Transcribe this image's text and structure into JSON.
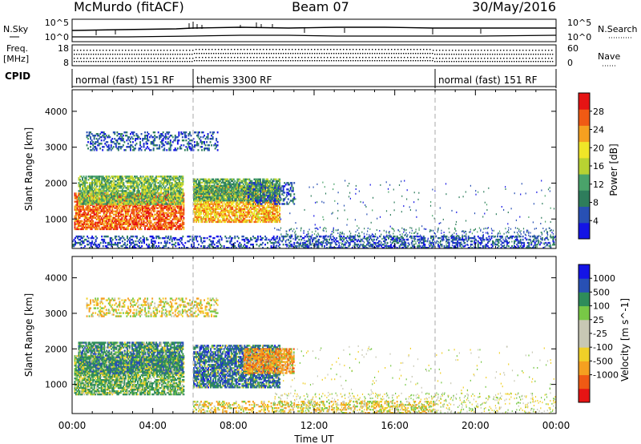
{
  "header": {
    "station": "McMurdo (fitACF)",
    "beam": "Beam 07",
    "date": "30/May/2016"
  },
  "top_panels": {
    "nsky_label": "N.Sky",
    "nsky_ticks": [
      "10^5",
      "10^0"
    ],
    "nsearch_label": "N.Search",
    "nsearch_ticks": [
      "10^5",
      "10^0"
    ],
    "freq_label_1": "Freq.",
    "freq_label_2": "[MHz]",
    "freq_ticks": [
      "18",
      "8"
    ],
    "nave_label": "Nave",
    "nave_ticks": [
      "60",
      "0"
    ],
    "cpid_label": "CPID",
    "cpid_segments": [
      {
        "label": "normal (fast) 151 RF",
        "start": 0,
        "end": 6
      },
      {
        "label": "themis 3300 RF",
        "start": 6,
        "end": 18
      },
      {
        "label": "normal (fast) 151 RF",
        "start": 18,
        "end": 24
      }
    ]
  },
  "colors": {
    "power_scale": [
      "#1414e6",
      "#2850b4",
      "#2e7d5c",
      "#4aa36a",
      "#b8d232",
      "#f0e628",
      "#f5a020",
      "#f05a14",
      "#e61414"
    ],
    "velocity_scale": [
      "#e61414",
      "#f05a14",
      "#f5a020",
      "#f0d028",
      "#c8c8b4",
      "#c8c8b4",
      "#78c846",
      "#2e8c5a",
      "#2850b4",
      "#1414e6"
    ]
  },
  "chart_data": [
    {
      "type": "heatmap",
      "title": "Power",
      "xlabel": "Time UT",
      "ylabel": "Slant Range [km]",
      "x_ticks": [
        "00:00",
        "04:00",
        "08:00",
        "12:00",
        "16:00",
        "20:00",
        "00:00"
      ],
      "x_range_hours": [
        0,
        24
      ],
      "y_ticks": [
        1000,
        2000,
        3000,
        4000
      ],
      "ylim": [
        180,
        4600
      ],
      "colorbar": {
        "label": "Power [dB]",
        "ticks": [
          4,
          8,
          12,
          16,
          20,
          24,
          28
        ],
        "range": [
          0,
          32
        ]
      },
      "cpid_change_times": [
        6,
        18
      ],
      "echo_regions": [
        {
          "t_start": 0.1,
          "t_end": 5.5,
          "r_min": 700,
          "r_max": 1700,
          "level": "strong",
          "value": 26
        },
        {
          "t_start": 0.3,
          "t_end": 5.5,
          "r_min": 1400,
          "r_max": 2200,
          "level": "moderate",
          "value": 14
        },
        {
          "t_start": 6.0,
          "t_end": 10.3,
          "r_min": 900,
          "r_max": 1900,
          "level": "strong",
          "value": 22
        },
        {
          "t_start": 6.0,
          "t_end": 10.3,
          "r_min": 1500,
          "r_max": 2100,
          "level": "moderate",
          "value": 12
        },
        {
          "t_start": 0.7,
          "t_end": 7.2,
          "r_min": 2900,
          "r_max": 3400,
          "level": "weak",
          "value": 6
        },
        {
          "t_start": 8.7,
          "t_end": 11.0,
          "r_min": 1400,
          "r_max": 2000,
          "level": "weak",
          "value": 6
        },
        {
          "t_start": 0.0,
          "t_end": 24.0,
          "r_min": 180,
          "r_max": 500,
          "level": "near-range",
          "value": 5
        }
      ]
    },
    {
      "type": "heatmap",
      "title": "Velocity",
      "xlabel": "Time UT",
      "ylabel": "Slant Range [km]",
      "x_ticks": [
        "00:00",
        "04:00",
        "08:00",
        "12:00",
        "16:00",
        "20:00",
        "00:00"
      ],
      "x_range_hours": [
        0,
        24
      ],
      "y_ticks": [
        1000,
        2000,
        3000,
        4000
      ],
      "ylim": [
        180,
        4600
      ],
      "colorbar": {
        "label": "Velocity [m s^-1]",
        "ticks": [
          "1000",
          "500",
          "100",
          "25",
          "-25",
          "-100",
          "-500",
          "-1000"
        ]
      },
      "cpid_change_times": [
        6,
        18
      ],
      "echo_regions": [
        {
          "t_start": 0.1,
          "t_end": 5.5,
          "r_min": 700,
          "r_max": 1800,
          "level": "slow",
          "value": 100
        },
        {
          "t_start": 0.3,
          "t_end": 5.5,
          "r_min": 1300,
          "r_max": 2200,
          "level": "mixed",
          "value": 300
        },
        {
          "t_start": 6.0,
          "t_end": 10.3,
          "r_min": 900,
          "r_max": 2100,
          "level": "mixed",
          "value": 500
        },
        {
          "t_start": 8.5,
          "t_end": 11.0,
          "r_min": 1300,
          "r_max": 2000,
          "level": "receding",
          "value": -300
        },
        {
          "t_start": 0.7,
          "t_end": 7.2,
          "r_min": 2900,
          "r_max": 3400,
          "level": "weak",
          "value": -50
        },
        {
          "t_start": 6.0,
          "t_end": 18.0,
          "r_min": 180,
          "r_max": 500,
          "level": "near-range",
          "value": -60
        }
      ]
    }
  ]
}
